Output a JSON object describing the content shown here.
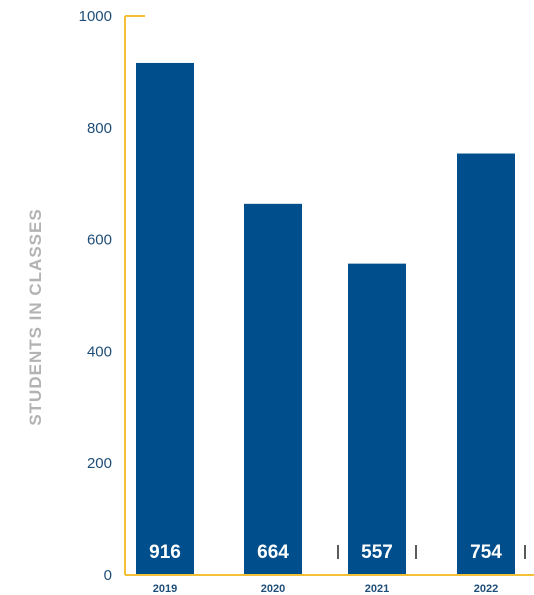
{
  "chart_data": {
    "type": "bar",
    "categories": [
      "2019",
      "2020",
      "2021",
      "2022"
    ],
    "values": [
      916,
      664,
      557,
      754
    ],
    "value_labels": [
      "916",
      "664",
      "557",
      "754"
    ],
    "title": "",
    "xlabel": "",
    "ylabel": "STUDENTS IN CLASSES",
    "ylim": [
      0,
      1000
    ],
    "yticks": [
      0,
      200,
      400,
      600,
      800,
      1000
    ],
    "ytick_labels": [
      "0",
      "200",
      "400",
      "600",
      "800",
      "1000"
    ],
    "grid": false,
    "legend": "none",
    "colors": {
      "bar": "#004f8c",
      "axis": "#f5c036",
      "tick_text": "#1f4e79",
      "ylabel_text": "#b3b3b3",
      "value_text": "#ffffff"
    }
  }
}
